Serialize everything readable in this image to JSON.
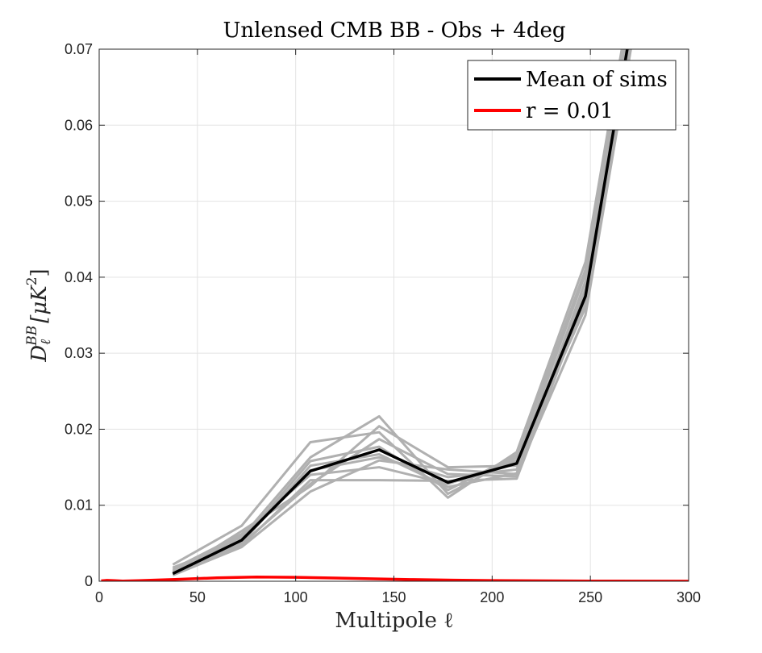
{
  "chart_data": {
    "type": "line",
    "title": "Unlensed CMB BB - Obs + 4deg",
    "xlabel": "Multipole ℓ",
    "ylabel": "D_ℓ^{BB} [μK^2]",
    "ylabel_parts": {
      "base": "D",
      "sub": "ℓ",
      "sup": "BB",
      "unit": "[μK",
      "unit_sup": "2",
      "close": "]"
    },
    "xlim": [
      0,
      300
    ],
    "ylim": [
      0,
      0.07
    ],
    "xticks": [
      0,
      50,
      100,
      150,
      200,
      250,
      300
    ],
    "yticks": [
      0,
      0.01,
      0.02,
      0.03,
      0.04,
      0.05,
      0.06,
      0.07
    ],
    "xtick_labels": [
      "0",
      "50",
      "100",
      "150",
      "200",
      "250",
      "300"
    ],
    "ytick_labels": [
      "0",
      "0.01",
      "0.02",
      "0.03",
      "0.04",
      "0.05",
      "0.06",
      "0.07"
    ],
    "grid": true,
    "legend_position": "top-right",
    "sims": {
      "color": "#b0b0b0",
      "x": [
        37.5,
        72.5,
        107.5,
        142.5,
        177.5,
        212.5,
        247.5,
        282.5
      ],
      "series": [
        [
          0.0022,
          0.0073,
          0.0183,
          0.0196,
          0.011,
          0.017,
          0.042,
          0.095
        ],
        [
          0.0008,
          0.0045,
          0.0118,
          0.0159,
          0.0147,
          0.0141,
          0.035,
          0.088
        ],
        [
          0.0014,
          0.0058,
          0.0163,
          0.0217,
          0.0115,
          0.0163,
          0.041,
          0.093
        ],
        [
          0.001,
          0.005,
          0.0152,
          0.0167,
          0.0124,
          0.0142,
          0.0395,
          0.0915
        ],
        [
          0.0016,
          0.0062,
          0.014,
          0.015,
          0.0128,
          0.0159,
          0.036,
          0.089
        ],
        [
          0.0012,
          0.0047,
          0.0133,
          0.0133,
          0.0132,
          0.0135,
          0.0372,
          0.09
        ],
        [
          0.0009,
          0.0066,
          0.0125,
          0.0204,
          0.015,
          0.0152,
          0.0405,
          0.094
        ],
        [
          0.0018,
          0.0053,
          0.0158,
          0.0177,
          0.012,
          0.0166,
          0.0365,
          0.0905
        ],
        [
          0.0011,
          0.0059,
          0.0146,
          0.0163,
          0.0137,
          0.0147,
          0.0385,
          0.092
        ],
        [
          0.0013,
          0.0049,
          0.0128,
          0.0187,
          0.0141,
          0.0138,
          0.0378,
          0.091
        ]
      ]
    },
    "series": [
      {
        "name": "Mean of sims",
        "color": "#000000",
        "x": [
          37.5,
          72.5,
          107.5,
          142.5,
          177.5,
          212.5,
          247.5,
          282.5
        ],
        "values": [
          0.001,
          0.0054,
          0.0145,
          0.0173,
          0.013,
          0.0155,
          0.0375,
          0.091
        ]
      },
      {
        "name": "r = 0.01",
        "color": "#ff0000",
        "x": [
          1,
          4,
          8,
          12,
          20,
          40,
          60,
          80,
          100,
          120,
          140,
          160,
          180,
          200,
          220,
          250,
          300
        ],
        "values": [
          5e-05,
          0.00012,
          8e-05,
          3e-05,
          8e-05,
          0.00025,
          0.00045,
          0.00055,
          0.00052,
          0.00043,
          0.00032,
          0.00022,
          0.00014,
          9e-05,
          6e-05,
          3e-05,
          1e-05
        ]
      }
    ]
  }
}
